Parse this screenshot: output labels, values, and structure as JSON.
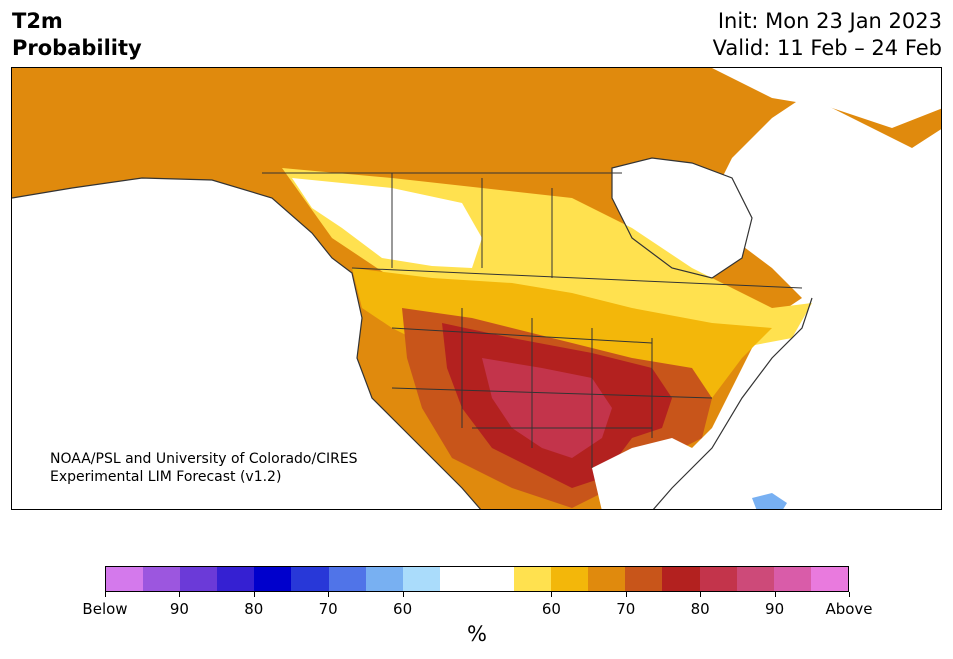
{
  "header": {
    "title_line1": "T2m",
    "title_line2": "Probability",
    "init": "Init: Mon 23 Jan 2023",
    "valid": "Valid: 11 Feb – 24 Feb"
  },
  "map": {
    "credit_line1": "NOAA/PSL and University of Colorado/CIRES",
    "credit_line2": "Experimental LIM Forecast (v1.2)",
    "region": "North America",
    "overlay": "probability shading with country/state/province borders and coastlines"
  },
  "colorbar": {
    "colors": [
      "#d479ec",
      "#9c56df",
      "#6b3ad8",
      "#3520d2",
      "#0000cc",
      "#2838d8",
      "#5074e8",
      "#78b0f2",
      "#aadcfb",
      "#ffffff",
      "#ffffff",
      "#ffe14f",
      "#f3b70a",
      "#e08a0d",
      "#c8551a",
      "#b3211f",
      "#c3344b",
      "#cd4a79",
      "#d95ca9",
      "#e97ade"
    ],
    "tick_labels": [
      "Below",
      "90",
      "80",
      "70",
      "60",
      "60",
      "70",
      "80",
      "90",
      "Above"
    ],
    "unit_label": "%"
  }
}
